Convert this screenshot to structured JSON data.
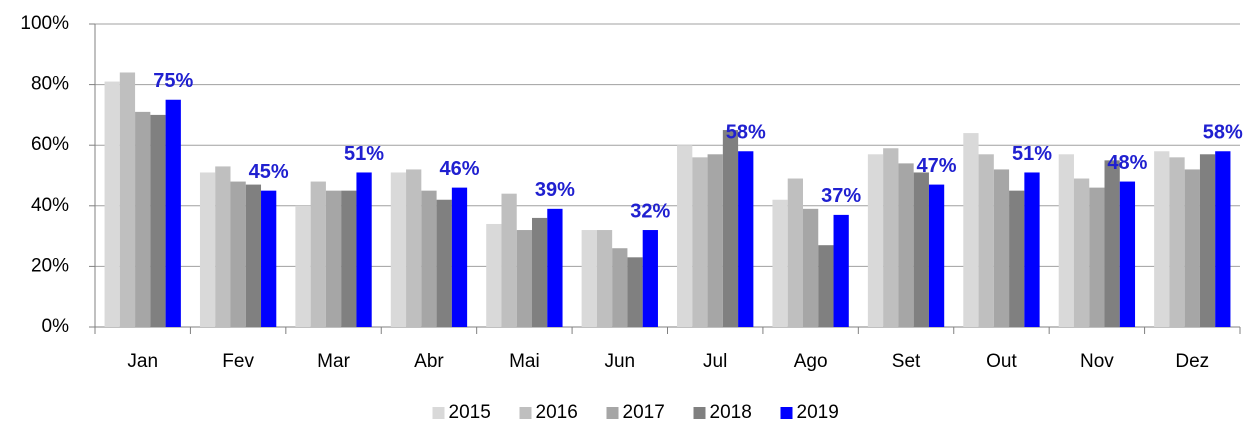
{
  "chart_data": {
    "type": "bar",
    "categories": [
      "Jan",
      "Fev",
      "Mar",
      "Abr",
      "Mai",
      "Jun",
      "Jul",
      "Ago",
      "Set",
      "Out",
      "Nov",
      "Dez"
    ],
    "series": [
      {
        "name": "2015",
        "color": "#d9d9d9",
        "values": [
          81,
          51,
          40,
          51,
          34,
          32,
          60,
          42,
          57,
          64,
          57,
          58
        ]
      },
      {
        "name": "2016",
        "color": "#bfbfbf",
        "values": [
          84,
          53,
          48,
          52,
          44,
          32,
          56,
          49,
          59,
          57,
          49,
          56
        ]
      },
      {
        "name": "2017",
        "color": "#a6a6a6",
        "values": [
          71,
          48,
          45,
          45,
          32,
          26,
          57,
          39,
          54,
          52,
          46,
          52
        ]
      },
      {
        "name": "2018",
        "color": "#808080",
        "values": [
          70,
          47,
          45,
          42,
          36,
          23,
          65,
          27,
          51,
          45,
          55,
          57
        ]
      },
      {
        "name": "2019",
        "color": "#0000ff",
        "values": [
          75,
          45,
          51,
          46,
          39,
          32,
          58,
          37,
          47,
          51,
          48,
          58
        ],
        "value_labels": [
          "75%",
          "45%",
          "51%",
          "46%",
          "39%",
          "32%",
          "58%",
          "37%",
          "47%",
          "51%",
          "48%",
          "58%"
        ]
      }
    ],
    "ylim": [
      0,
      100
    ],
    "yticks": [
      {
        "value": 0,
        "label": "0%"
      },
      {
        "value": 20,
        "label": "20%"
      },
      {
        "value": 40,
        "label": "40%"
      },
      {
        "value": 60,
        "label": "60%"
      },
      {
        "value": 80,
        "label": "80%"
      },
      {
        "value": 100,
        "label": "100%"
      }
    ],
    "grid": true,
    "legend": "bottom"
  }
}
